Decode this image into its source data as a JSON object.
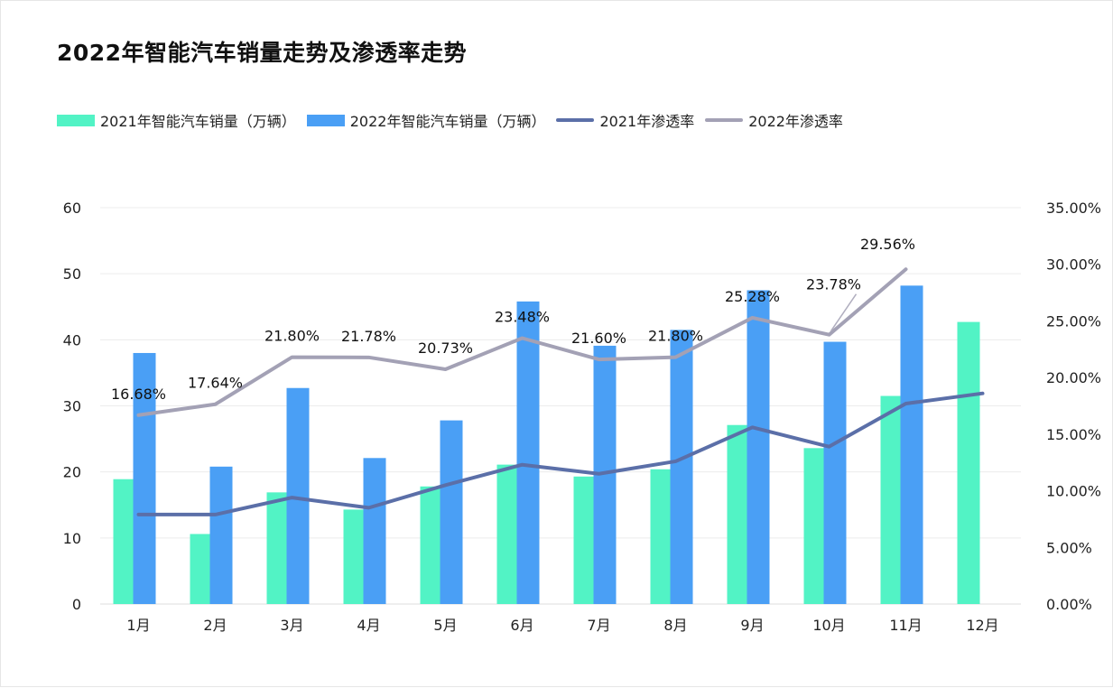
{
  "title": "2022年智能汽车销量走势及渗透率走势",
  "colors": {
    "sales2021": "#52f3c5",
    "sales2022": "#4a9ff5",
    "pen2021": "#5b6fa8",
    "pen2022": "#a3a1b5",
    "grid": "#ececec",
    "axis_text": "#222222"
  },
  "legend": [
    {
      "label": "2021年智能汽车销量（万辆）",
      "kind": "bar",
      "color": "#52f3c5"
    },
    {
      "label": "2022年智能汽车销量（万辆）",
      "kind": "bar",
      "color": "#4a9ff5"
    },
    {
      "label": "2021年渗透率",
      "kind": "line",
      "color": "#5b6fa8"
    },
    {
      "label": "2022年渗透率",
      "kind": "line",
      "color": "#a3a1b5"
    }
  ],
  "chart_data": {
    "type": "bar",
    "title": "2022年智能汽车销量走势及渗透率走势",
    "categories": [
      "1月",
      "2月",
      "3月",
      "4月",
      "5月",
      "6月",
      "7月",
      "8月",
      "9月",
      "10月",
      "11月",
      "12月"
    ],
    "y_left": {
      "ylim": [
        0,
        60
      ],
      "ticks": [
        "0",
        "10",
        "20",
        "30",
        "40",
        "50",
        "60"
      ]
    },
    "y_right": {
      "ylim": [
        0,
        35
      ],
      "ticks": [
        "0.00%",
        "5.00%",
        "10.00%",
        "15.00%",
        "20.00%",
        "25.00%",
        "30.00%",
        "35.00%"
      ]
    },
    "grid": true,
    "legend_position": "top-left",
    "series": [
      {
        "name": "2021年智能汽车销量（万辆）",
        "type": "bar",
        "axis": "left",
        "values": [
          18.9,
          10.6,
          16.9,
          14.3,
          17.8,
          21.1,
          19.3,
          20.4,
          27.1,
          23.6,
          31.5,
          42.7
        ]
      },
      {
        "name": "2022年智能汽车销量（万辆）",
        "type": "bar",
        "axis": "left",
        "values": [
          38.0,
          20.8,
          32.7,
          22.1,
          27.8,
          45.8,
          39.1,
          41.5,
          47.5,
          39.7,
          48.2,
          null
        ]
      },
      {
        "name": "2021年渗透率",
        "type": "line",
        "axis": "right",
        "values": [
          7.9,
          7.9,
          9.4,
          8.5,
          10.5,
          12.3,
          11.5,
          12.6,
          15.6,
          13.9,
          17.7,
          18.6
        ]
      },
      {
        "name": "2022年渗透率",
        "type": "line",
        "axis": "right",
        "values": [
          16.68,
          17.64,
          21.8,
          21.78,
          20.73,
          23.48,
          21.6,
          21.8,
          25.28,
          23.78,
          29.56,
          null
        ],
        "labels": [
          "16.68%",
          "17.64%",
          "21.80%",
          "21.78%",
          "20.73%",
          "23.48%",
          "21.60%",
          "21.80%",
          "25.28%",
          "23.78%",
          "29.56%",
          ""
        ]
      }
    ]
  }
}
